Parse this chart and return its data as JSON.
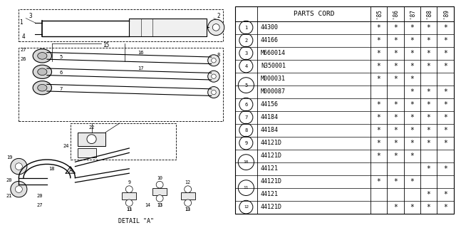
{
  "catalog_number": "A440A00141",
  "bg_color": "#ffffff",
  "line_color": "#000000",
  "text_color": "#000000",
  "table": {
    "header": "PARTS CORD",
    "year_cols": [
      "85",
      "86",
      "87",
      "88",
      "89"
    ],
    "rows": [
      {
        "num": "1",
        "part": "44300",
        "marks": [
          true,
          true,
          true,
          true,
          true
        ]
      },
      {
        "num": "2",
        "part": "44166",
        "marks": [
          true,
          true,
          true,
          true,
          true
        ]
      },
      {
        "num": "3",
        "part": "M660014",
        "marks": [
          true,
          true,
          true,
          true,
          true
        ]
      },
      {
        "num": "4",
        "part": "N350001",
        "marks": [
          true,
          true,
          true,
          true,
          true
        ]
      },
      {
        "num": "5",
        "part": "M000031",
        "marks": [
          true,
          true,
          true,
          false,
          false
        ],
        "group_start": true,
        "group_id": "5"
      },
      {
        "num": "5",
        "part": "M000087",
        "marks": [
          false,
          false,
          true,
          true,
          true
        ],
        "group_end": true,
        "group_id": "5"
      },
      {
        "num": "6",
        "part": "44156",
        "marks": [
          true,
          true,
          true,
          true,
          true
        ]
      },
      {
        "num": "7",
        "part": "44184",
        "marks": [
          true,
          true,
          true,
          true,
          true
        ]
      },
      {
        "num": "8",
        "part": "44184",
        "marks": [
          true,
          true,
          true,
          true,
          true
        ]
      },
      {
        "num": "9",
        "part": "44121D",
        "marks": [
          true,
          true,
          true,
          true,
          true
        ]
      },
      {
        "num": "10",
        "part": "44121D",
        "marks": [
          true,
          true,
          true,
          false,
          false
        ],
        "group_start": true,
        "group_id": "10"
      },
      {
        "num": "10",
        "part": "44121",
        "marks": [
          false,
          false,
          false,
          true,
          true
        ],
        "group_end": true,
        "group_id": "10"
      },
      {
        "num": "11",
        "part": "44121D",
        "marks": [
          true,
          true,
          true,
          false,
          false
        ],
        "group_start": true,
        "group_id": "11"
      },
      {
        "num": "11",
        "part": "44121",
        "marks": [
          false,
          false,
          false,
          true,
          true
        ],
        "group_end": true,
        "group_id": "11"
      },
      {
        "num": "12",
        "part": "44121D",
        "marks": [
          false,
          true,
          true,
          true,
          true
        ]
      }
    ]
  }
}
